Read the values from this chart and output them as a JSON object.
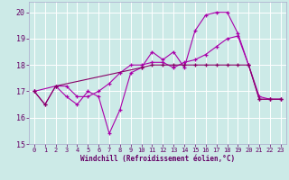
{
  "xlabel": "Windchill (Refroidissement éolien,°C)",
  "xlim": [
    -0.5,
    23.5
  ],
  "ylim": [
    15.0,
    20.4
  ],
  "yticks": [
    15,
    16,
    17,
    18,
    19,
    20
  ],
  "xticks": [
    0,
    1,
    2,
    3,
    4,
    5,
    6,
    7,
    8,
    9,
    10,
    11,
    12,
    13,
    14,
    15,
    16,
    17,
    18,
    19,
    20,
    21,
    22,
    23
  ],
  "bg_color": "#cceae7",
  "grid_color": "#ffffff",
  "line_color_main": "#aa00aa",
  "line_color_flat": "#880066",
  "line1_x": [
    0,
    1,
    2,
    3,
    4,
    5,
    6,
    7,
    8,
    9,
    10,
    11,
    12,
    13,
    14,
    15,
    16,
    17,
    18,
    19,
    20,
    21,
    22,
    23
  ],
  "line1_y": [
    17.0,
    16.5,
    17.2,
    16.8,
    16.5,
    17.0,
    16.8,
    15.4,
    16.3,
    17.7,
    17.9,
    18.5,
    18.2,
    18.5,
    17.9,
    19.3,
    19.9,
    20.0,
    20.0,
    19.2,
    18.0,
    16.8,
    16.7,
    16.7
  ],
  "line2_x": [
    0,
    2,
    3,
    4,
    5,
    6,
    7,
    8,
    9,
    10,
    11,
    12,
    13,
    14,
    15,
    16,
    17,
    18,
    19,
    20,
    21,
    22,
    23
  ],
  "line2_y": [
    17.0,
    17.2,
    17.2,
    16.8,
    16.8,
    17.0,
    17.3,
    17.7,
    18.0,
    18.0,
    18.1,
    18.1,
    17.9,
    18.1,
    18.2,
    18.4,
    18.7,
    19.0,
    19.1,
    18.0,
    16.7,
    16.7,
    16.7
  ],
  "line3_x": [
    0,
    1,
    2,
    10,
    11,
    12,
    13,
    14,
    15,
    16,
    17,
    18,
    19,
    20,
    21,
    22,
    23
  ],
  "line3_y": [
    17.0,
    16.5,
    17.2,
    17.9,
    18.0,
    18.0,
    18.0,
    18.0,
    18.0,
    18.0,
    18.0,
    18.0,
    18.0,
    18.0,
    16.7,
    16.7,
    16.7
  ]
}
